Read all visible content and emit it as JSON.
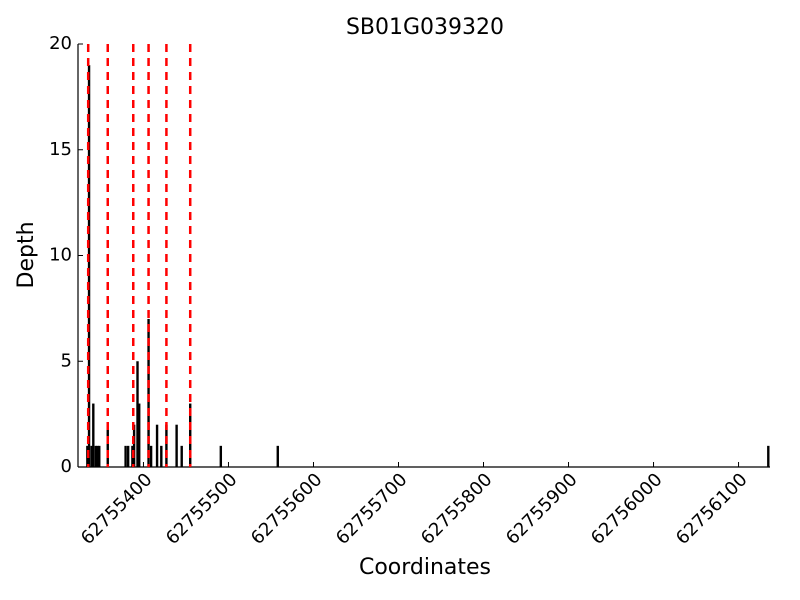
{
  "chart_data": {
    "type": "bar",
    "title": "SB01G039320",
    "x_label": "Coordinates",
    "y_label": "Depth",
    "x": [
      62755334,
      62755336,
      62755339,
      62755341,
      62755344,
      62755346,
      62755348,
      62755358,
      62755379,
      62755382,
      62755387,
      62755389,
      62755393,
      62755395,
      62755406,
      62755409,
      62755416,
      62755421,
      62755427,
      62755439,
      62755445,
      62755455,
      62755491,
      62755558,
      62756135
    ],
    "values": [
      1,
      19,
      1,
      3,
      1,
      1,
      1,
      2,
      1,
      1,
      1,
      2,
      5,
      3,
      7,
      1,
      2,
      1,
      2,
      2,
      1,
      3,
      1,
      1,
      1
    ],
    "color": "#000000",
    "vlines": {
      "x": [
        62755335,
        62755358,
        62755388,
        62755406,
        62755427,
        62755455
      ],
      "color": "#ff0000",
      "style": "dashed"
    },
    "xlim": [
      62755323,
      62756137
    ],
    "xticks": [
      62755400,
      62755500,
      62755600,
      62755700,
      62755800,
      62755900,
      62756000,
      62756100
    ],
    "ylim": [
      0,
      20
    ],
    "yticks": [
      0,
      5,
      10,
      15,
      20
    ]
  }
}
